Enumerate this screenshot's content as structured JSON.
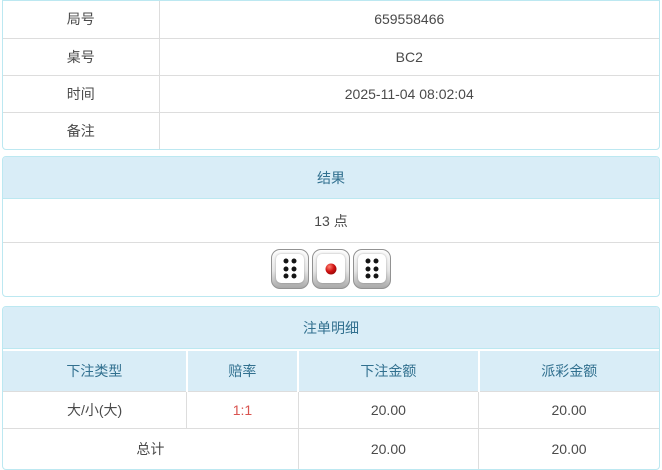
{
  "colors": {
    "panel_border": "#bce8f1",
    "header_bg": "#d9edf7",
    "header_text": "#31708f",
    "cell_border": "#dddddd",
    "text": "#4a4a4a",
    "odds_red": "#d9534f"
  },
  "info_table": {
    "rows": [
      {
        "label": "局号",
        "value": "659558466"
      },
      {
        "label": "桌号",
        "value": "BC2"
      },
      {
        "label": "时间",
        "value": "2025-11-04 08:02:04"
      },
      {
        "label": "备注",
        "value": ""
      }
    ]
  },
  "result_panel": {
    "title": "结果",
    "points": "13 点",
    "dice": [
      {
        "value": 6,
        "pip_color": "black"
      },
      {
        "value": 1,
        "pip_color": "red"
      },
      {
        "value": 6,
        "pip_color": "black"
      }
    ]
  },
  "bets_panel": {
    "title": "注单明细",
    "columns": [
      "下注类型",
      "赔率",
      "下注金额",
      "派彩金额"
    ],
    "rows": [
      {
        "bet_type": "大/小(大)",
        "odds": "1:1",
        "bet_amount": "20.00",
        "payout_amount": "20.00"
      }
    ],
    "total": {
      "label": "总计",
      "bet_amount": "20.00",
      "payout_amount": "20.00"
    }
  }
}
